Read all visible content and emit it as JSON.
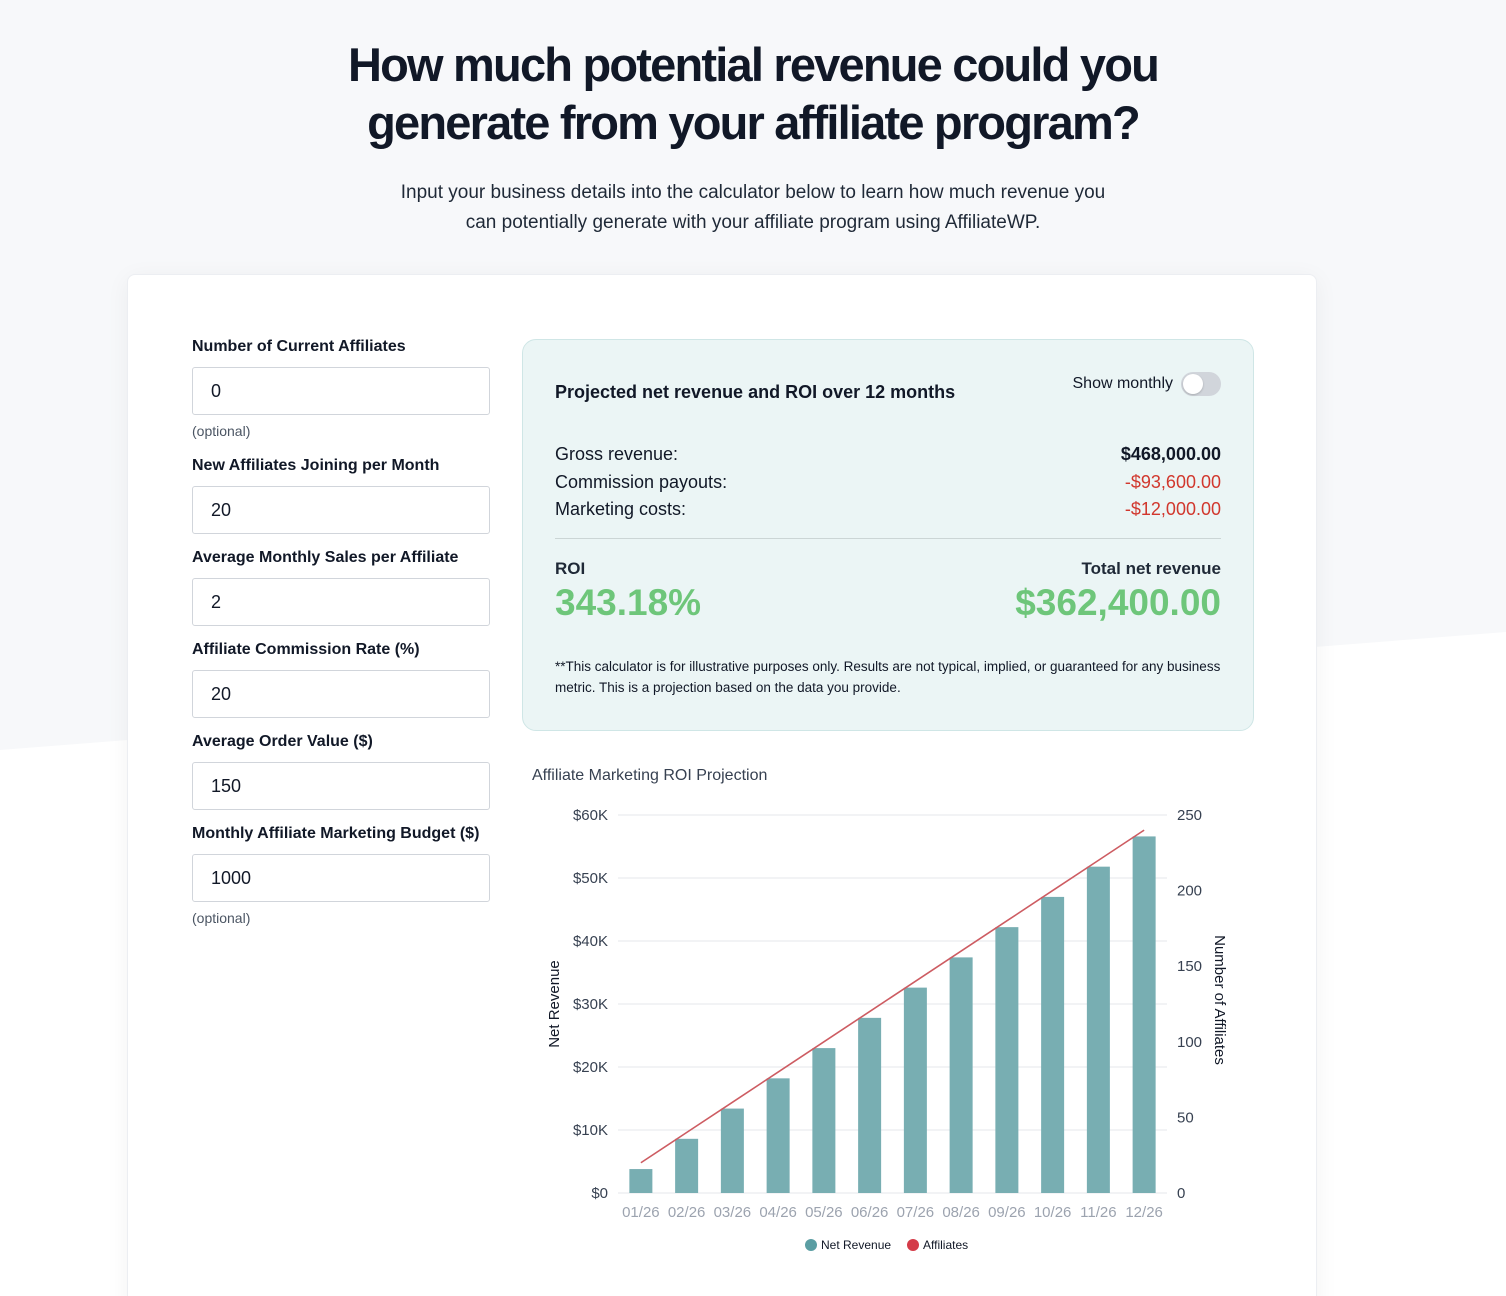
{
  "hero": {
    "title": "How much potential revenue could you generate from your affiliate program?",
    "subtitle": "Input your business details into the calculator below to learn how much revenue you can potentially generate with your affiliate program using AffiliateWP."
  },
  "form": {
    "fields": [
      {
        "label": "Number of Current Affiliates",
        "value": "0",
        "hint": "(optional)"
      },
      {
        "label": "New Affiliates Joining per Month",
        "value": "20",
        "hint": ""
      },
      {
        "label": "Average Monthly Sales per Affiliate",
        "value": "2",
        "hint": ""
      },
      {
        "label": "Affiliate Commission Rate (%)",
        "value": "20",
        "hint": ""
      },
      {
        "label": "Average Order Value ($)",
        "value": "150",
        "hint": ""
      },
      {
        "label": "Monthly Affiliate Marketing Budget ($)",
        "value": "1000",
        "hint": "(optional)"
      }
    ]
  },
  "summary": {
    "title": "Projected net revenue and ROI over 12 months",
    "toggle_label": "Show monthly",
    "toggle_on": false,
    "rows": [
      {
        "label": "Gross revenue:",
        "value": "$468,000.00"
      },
      {
        "label": "Commission payouts:",
        "value": "-$93,600.00"
      },
      {
        "label": "Marketing costs:",
        "value": "-$12,000.00"
      }
    ],
    "roi_label": "ROI",
    "roi_value": "343.18%",
    "total_label": "Total net revenue",
    "total_value": "$362,400.00",
    "disclaimer": "**This calculator is for illustrative purposes only. Results are not typical, implied, or guaranteed for any business metric. This is a projection based on the data you provide."
  },
  "colors": {
    "bar": "#78aeb2",
    "line": "#cd5c62",
    "legend_bar": "#5b9ea3",
    "legend_line": "#d43b48",
    "positive": "#6ec67a",
    "negative": "#d1372d"
  },
  "chart_data": {
    "type": "bar",
    "title": "Affiliate Marketing ROI Projection",
    "categories": [
      "01/26",
      "02/26",
      "03/26",
      "04/26",
      "05/26",
      "06/26",
      "07/26",
      "08/26",
      "09/26",
      "10/26",
      "11/26",
      "12/26"
    ],
    "series": [
      {
        "name": "Net Revenue",
        "type": "bar",
        "axis": "left",
        "values": [
          3800,
          8600,
          13400,
          18200,
          23000,
          27800,
          32600,
          37400,
          42200,
          47000,
          51800,
          56600
        ]
      },
      {
        "name": "Affiliates",
        "type": "line",
        "axis": "right",
        "values": [
          20,
          40,
          60,
          80,
          100,
          120,
          140,
          160,
          180,
          200,
          220,
          240
        ]
      }
    ],
    "ylabel": "Net Revenue",
    "y2label": "Number of Affiliates",
    "ylim": [
      0,
      60000
    ],
    "y2lim": [
      0,
      250
    ],
    "yticks": [
      "$0",
      "$10K",
      "$20K",
      "$30K",
      "$40K",
      "$50K",
      "$60K"
    ],
    "y2ticks": [
      "0",
      "50",
      "100",
      "150",
      "200",
      "250"
    ],
    "grid": true,
    "legend_position": "bottom"
  }
}
